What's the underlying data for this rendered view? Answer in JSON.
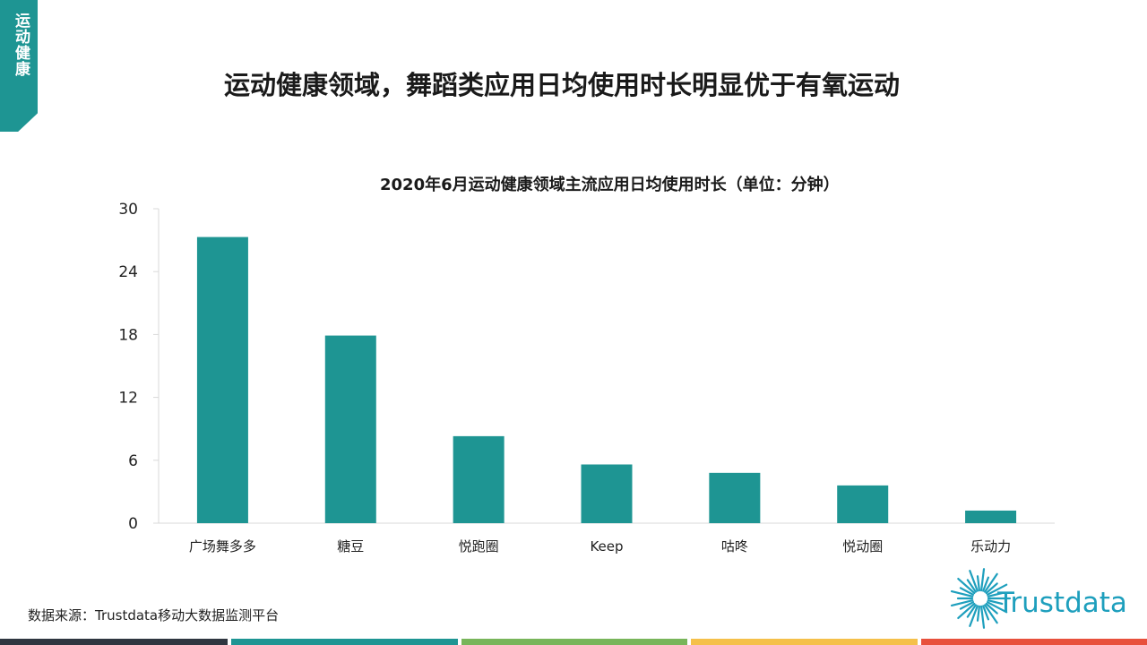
{
  "section_tag": "运动健康",
  "page_title": "运动健康领域，舞蹈类应用日均使用时长明显优于有氧运动",
  "source_note": "数据来源：Trustdata移动大数据监测平台",
  "logo_text": "Trustdata",
  "colors": {
    "accent": "#1e9593",
    "bar": "#1e9593",
    "axis": "#d9d9d9",
    "logo": "#1e9fbd",
    "strips": [
      "#2f3640",
      "#1e9593",
      "#78b55a",
      "#f5c04a",
      "#e8503c"
    ]
  },
  "chart_data": {
    "type": "bar",
    "title": "2020年6月运动健康领域主流应用日均使用时长（单位：分钟）",
    "categories": [
      "广场舞多多",
      "糖豆",
      "悦跑圈",
      "Keep",
      "咕咚",
      "悦动圈",
      "乐动力"
    ],
    "values": [
      27.3,
      17.9,
      8.3,
      5.6,
      4.8,
      3.6,
      1.2
    ],
    "ylim": [
      0,
      30
    ],
    "yticks": [
      0,
      6,
      12,
      18,
      24,
      30
    ],
    "xlabel": "",
    "ylabel": "",
    "grid": false,
    "legend": "none"
  }
}
